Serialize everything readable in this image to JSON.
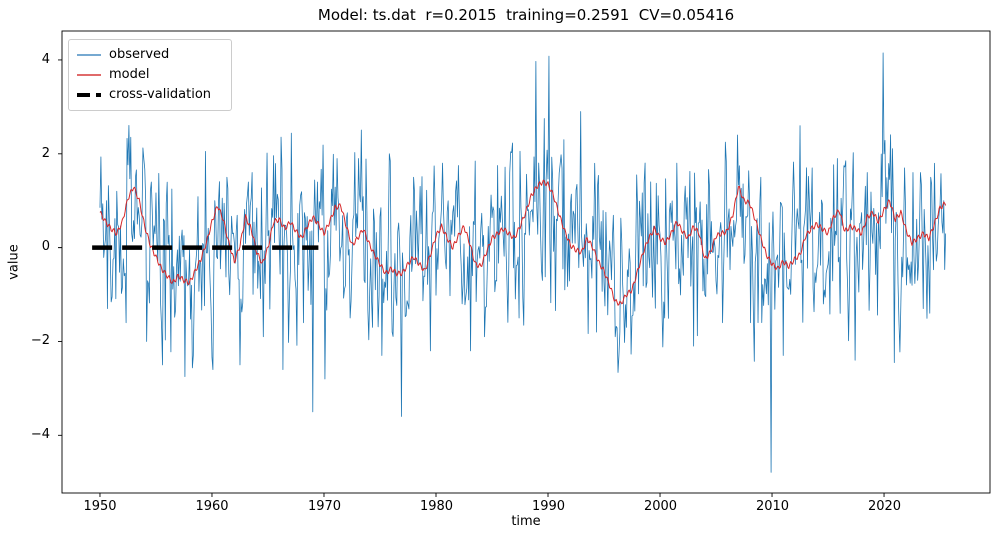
{
  "figure": {
    "title": "Model: ts.dat  r=0.2015  training=0.2591  CV=0.05416",
    "xlabel": "time",
    "ylabel": "value",
    "background": "#ffffff"
  },
  "legend": {
    "items": [
      {
        "label": "observed",
        "color": "#1f77b4",
        "style": "thin-line"
      },
      {
        "label": "model",
        "color": "#d62728",
        "style": "thin-line"
      },
      {
        "label": "cross-validation",
        "color": "#000000",
        "style": "thick-dashed-line"
      }
    ]
  },
  "chart_data": {
    "type": "line",
    "title": "Model: ts.dat  r=0.2015  training=0.2591  CV=0.05416",
    "xlabel": "time",
    "ylabel": "value",
    "xlim": [
      1946.61,
      2029.46
    ],
    "ylim": [
      -5.23,
      4.617
    ],
    "grid": false,
    "legend_position": "upper left",
    "xticks": [
      1950,
      1960,
      1970,
      1980,
      1990,
      2000,
      2010,
      2020
    ],
    "xtick_labels": [
      "1950",
      "1960",
      "1970",
      "1980",
      "1990",
      "2000",
      "2010",
      "2020"
    ],
    "yticks": [
      4,
      2,
      0,
      -2,
      -4
    ],
    "ytick_labels": [
      "4",
      "2",
      "0",
      "−2",
      "−4"
    ],
    "series": [
      {
        "name": "observed",
        "color": "#1f77b4",
        "linewidth": 0.8,
        "generator": {
          "seed": 20157,
          "t_start": 1950.0,
          "t_end": 2025.58,
          "step": 0.0833333,
          "trend_scale": 0.6,
          "noise_amp": 1.0,
          "ar": 0.3,
          "anchors": [
            [
              1950.0,
              0.85
            ],
            [
              1950.7,
              -1.3
            ],
            [
              1951.5,
              1.2
            ],
            [
              1952.3,
              -1.6
            ],
            [
              1953.2,
              1.5
            ],
            [
              1954.2,
              -2.0
            ],
            [
              1955.6,
              -2.5
            ],
            [
              1956.4,
              1.25
            ],
            [
              1957.6,
              -2.75
            ],
            [
              1958.3,
              -2.3
            ],
            [
              1959.4,
              2.05
            ],
            [
              1960.1,
              -2.6
            ],
            [
              1961.3,
              1.5
            ],
            [
              1962.5,
              -2.5
            ],
            [
              1963.6,
              1.6
            ],
            [
              1964.6,
              -1.9
            ],
            [
              1966.3,
              -2.6
            ],
            [
              1967.1,
              2.44
            ],
            [
              1968.2,
              -1.6
            ],
            [
              1969.0,
              -3.5
            ],
            [
              1970.1,
              -2.8
            ],
            [
              1971.2,
              1.9
            ],
            [
              1972.3,
              -1.5
            ],
            [
              1973.1,
              1.9
            ],
            [
              1974.3,
              -1.7
            ],
            [
              1975.2,
              -2.3
            ],
            [
              1975.9,
              1.85
            ],
            [
              1976.9,
              -3.6
            ],
            [
              1978.0,
              1.5
            ],
            [
              1979.5,
              -2.2
            ],
            [
              1980.6,
              1.8
            ],
            [
              1982.0,
              1.75
            ],
            [
              1983.1,
              -2.2
            ],
            [
              1984.3,
              -1.9
            ],
            [
              1985.5,
              1.75
            ],
            [
              1986.6,
              1.6
            ],
            [
              1987.4,
              -1.5
            ],
            [
              1988.9,
              3.97
            ],
            [
              1989.5,
              -0.7
            ],
            [
              1990.1,
              4.08
            ],
            [
              1991.4,
              2.3
            ],
            [
              1992.9,
              2.9
            ],
            [
              1994.3,
              -1.8
            ],
            [
              1996.0,
              -1.9
            ],
            [
              1997.0,
              -1.7
            ],
            [
              1997.9,
              1.55
            ],
            [
              1999.2,
              1.4
            ],
            [
              2000.4,
              -1.5
            ],
            [
              2001.5,
              1.8
            ],
            [
              2003.0,
              -2.1
            ],
            [
              2004.4,
              1.3
            ],
            [
              2005.6,
              -1.6
            ],
            [
              2006.9,
              2.4
            ],
            [
              2008.1,
              -1.6
            ],
            [
              2009.0,
              1.5
            ],
            [
              2009.9,
              -4.79
            ],
            [
              2011.0,
              -2.3
            ],
            [
              2012.5,
              2.6
            ],
            [
              2013.6,
              1.7
            ],
            [
              2014.6,
              -1.2
            ],
            [
              2015.8,
              1.9
            ],
            [
              2016.6,
              1.85
            ],
            [
              2017.4,
              -2.4
            ],
            [
              2018.5,
              1.6
            ],
            [
              2019.9,
              4.15
            ],
            [
              2020.9,
              -2.45
            ],
            [
              2021.8,
              1.7
            ],
            [
              2022.6,
              1.6
            ],
            [
              2023.5,
              -1.3
            ],
            [
              2024.2,
              1.5
            ],
            [
              2025.3,
              1.0
            ]
          ]
        }
      },
      {
        "name": "model",
        "color": "#d62728",
        "linewidth": 1.0,
        "x_start": 1950.0,
        "x_step": 0.5,
        "wiggle_amp": 0.055,
        "wiggle_period": 0.38,
        "values": [
          0.75,
          0.55,
          0.4,
          0.3,
          0.55,
          1.05,
          1.3,
          1.0,
          0.45,
          0.05,
          -0.2,
          -0.45,
          -0.6,
          -0.75,
          -0.6,
          -0.7,
          -0.75,
          -0.5,
          -0.25,
          0.1,
          0.55,
          0.9,
          0.6,
          0.1,
          -0.3,
          0.05,
          0.65,
          0.4,
          -0.1,
          -0.35,
          0.0,
          0.55,
          0.6,
          0.4,
          0.55,
          0.35,
          0.2,
          0.45,
          0.65,
          0.5,
          0.3,
          0.55,
          0.85,
          0.9,
          0.45,
          0.05,
          0.2,
          0.4,
          0.1,
          -0.15,
          -0.35,
          -0.55,
          -0.45,
          -0.55,
          -0.55,
          -0.35,
          -0.2,
          -0.35,
          -0.5,
          -0.15,
          0.25,
          0.45,
          0.2,
          0.0,
          0.25,
          0.45,
          0.1,
          -0.35,
          -0.4,
          -0.1,
          0.2,
          0.3,
          0.4,
          0.3,
          0.2,
          0.45,
          0.75,
          1.1,
          1.3,
          1.4,
          1.35,
          1.1,
          0.7,
          0.35,
          0.05,
          -0.05,
          -0.1,
          0.2,
          0.0,
          -0.3,
          -0.5,
          -0.8,
          -1.15,
          -1.2,
          -1.0,
          -0.9,
          -0.5,
          -0.1,
          0.2,
          0.4,
          0.2,
          0.1,
          0.3,
          0.55,
          0.35,
          0.2,
          0.45,
          0.3,
          -0.25,
          -0.1,
          0.25,
          0.3,
          0.35,
          0.7,
          1.3,
          1.0,
          0.95,
          0.6,
          0.2,
          -0.15,
          -0.35,
          -0.45,
          -0.3,
          -0.4,
          -0.25,
          -0.15,
          0.25,
          0.4,
          0.5,
          0.4,
          0.3,
          0.65,
          0.8,
          0.35,
          0.45,
          0.4,
          0.3,
          0.65,
          0.75,
          0.55,
          0.8,
          1.0,
          0.6,
          0.75,
          0.35,
          0.1,
          0.2,
          0.3,
          0.2,
          0.5,
          0.85,
          0.95
        ]
      },
      {
        "name": "cross-validation",
        "color": "#000000",
        "linewidth": 4.5,
        "dash": [
          20,
          10
        ],
        "x": [
          1949.3,
          1969.5
        ],
        "y": [
          0,
          0
        ]
      }
    ]
  }
}
